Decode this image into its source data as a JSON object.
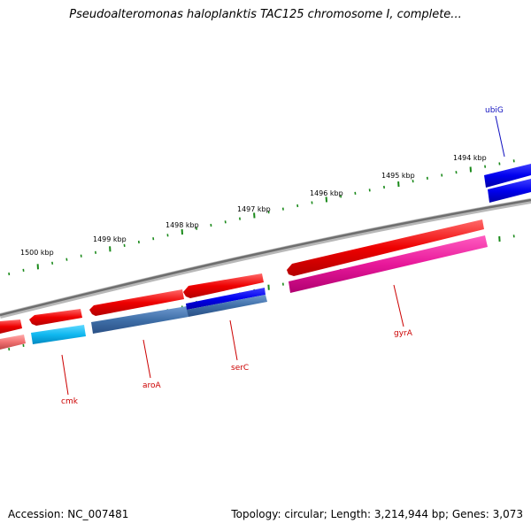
{
  "title": "Pseudoalteromonas haloplanktis TAC125 chromosome I, complete...",
  "accession": "Accession: NC_007481",
  "summary": "Topology: circular; Length: 3,214,944 bp; Genes: 3,073",
  "colors": {
    "backbone": "#808080",
    "tick": "#1a8a1a",
    "cds_forward": "#ff1a1a",
    "label_red": "#cc0000",
    "label_blue": "#1010c0"
  },
  "scale": {
    "tick_labels": [
      "1494 kbp",
      "1495 kbp",
      "1496 kbp",
      "1497 kbp",
      "1498 kbp",
      "1499 kbp",
      "1500 kbp"
    ]
  },
  "genes": {
    "labels": [
      {
        "name": "ubiG",
        "color": "#1010c0"
      },
      {
        "name": "gyrA",
        "color": "#cc0000"
      },
      {
        "name": "serC",
        "color": "#cc0000"
      },
      {
        "name": "aroA",
        "color": "#cc0000"
      },
      {
        "name": "cmk",
        "color": "#cc0000"
      }
    ]
  }
}
